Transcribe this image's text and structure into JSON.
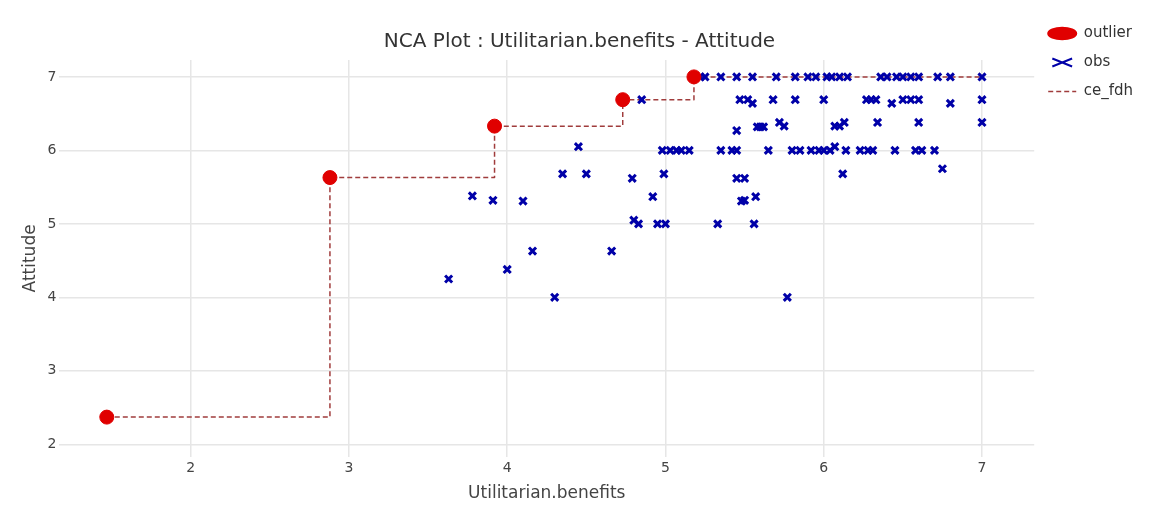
{
  "chart_data": {
    "type": "scatter",
    "title": "NCA Plot : Utilitarian.benefits - Attitude",
    "xlabel": "Utilitarian.benefits",
    "ylabel": "Attitude",
    "xlim": [
      1.17,
      7.33
    ],
    "xticks": [
      2,
      3,
      4,
      5,
      6,
      7
    ],
    "ylim": [
      1.83,
      7.23
    ],
    "yticks": [
      2,
      3,
      4,
      5,
      6,
      7
    ],
    "grid": true,
    "legend": "top right",
    "series": [
      {
        "name": "outlier",
        "type": "scatter",
        "marker": "circle",
        "color": "#e00000",
        "x": [
          1.47,
          2.88,
          3.92,
          4.73,
          5.18
        ],
        "values": [
          2.37,
          5.63,
          6.33,
          6.69,
          7.0
        ]
      },
      {
        "name": "obs",
        "type": "scatter",
        "marker": "cross",
        "color": "#0000a8",
        "x": [
          3.63,
          3.78,
          3.91,
          4.0,
          4.1,
          4.16,
          4.3,
          4.35,
          4.45,
          4.5,
          4.66,
          4.79,
          4.8,
          4.83,
          4.85,
          4.92,
          4.95,
          4.98,
          4.99,
          5.0,
          5.03,
          5.07,
          5.1,
          5.15,
          5.22,
          5.25,
          5.33,
          5.35,
          5.42,
          5.45,
          5.45,
          5.45,
          5.48,
          5.5,
          5.5,
          5.47,
          5.52,
          5.55,
          5.55,
          5.57,
          5.56,
          5.58,
          5.6,
          5.62,
          5.65,
          5.68,
          5.7,
          5.72,
          5.75,
          5.77,
          5.8,
          5.82,
          5.82,
          5.85,
          5.9,
          5.92,
          5.97,
          6.0,
          6.0,
          6.02,
          6.04,
          6.07,
          6.07,
          6.1,
          6.1,
          6.12,
          6.13,
          6.14,
          6.15,
          6.23,
          6.27,
          6.28,
          6.31,
          6.33,
          6.34,
          6.36,
          6.4,
          6.43,
          6.45,
          6.46,
          6.5,
          6.5,
          6.55,
          6.55,
          6.58,
          6.6,
          6.6,
          6.6,
          6.62,
          6.7,
          6.72,
          6.75,
          6.8,
          6.8,
          7.0,
          7.0,
          7.0,
          5.35,
          5.45,
          5.95,
          6.05,
          6.3
        ],
        "values": [
          4.25,
          5.38,
          5.32,
          4.38,
          5.31,
          4.63,
          4.0,
          5.68,
          6.05,
          5.68,
          4.63,
          5.62,
          5.05,
          5.0,
          6.69,
          5.37,
          5.0,
          6.0,
          5.68,
          5.0,
          6.0,
          6.0,
          6.0,
          6.0,
          7.0,
          7.0,
          5.0,
          6.0,
          6.0,
          6.0,
          6.27,
          5.62,
          5.31,
          5.62,
          5.32,
          6.69,
          6.69,
          6.64,
          7.0,
          5.37,
          5.0,
          6.32,
          6.32,
          6.32,
          6.0,
          6.69,
          7.0,
          6.38,
          6.33,
          4.0,
          6.0,
          6.69,
          7.0,
          6.0,
          7.0,
          6.0,
          6.0,
          6.69,
          6.0,
          7.0,
          6.0,
          6.05,
          6.33,
          6.33,
          7.0,
          5.68,
          6.38,
          6.0,
          7.0,
          6.0,
          6.69,
          6.0,
          6.0,
          6.69,
          6.38,
          7.0,
          7.0,
          6.64,
          6.0,
          7.0,
          6.69,
          7.0,
          6.69,
          7.0,
          6.0,
          6.69,
          6.38,
          7.0,
          6.0,
          6.0,
          7.0,
          5.75,
          6.64,
          7.0,
          7.0,
          6.69,
          6.38,
          7.0,
          7.0,
          7.0,
          7.0,
          6.69
        ]
      },
      {
        "name": "ce_fdh",
        "type": "step",
        "line_style": "dashed",
        "marker": "none",
        "color": "#a03c3c",
        "x": [
          1.47,
          2.88,
          3.92,
          4.73,
          5.18,
          7.0
        ],
        "values": [
          2.37,
          5.63,
          6.33,
          6.69,
          7.0,
          7.0
        ]
      }
    ]
  }
}
